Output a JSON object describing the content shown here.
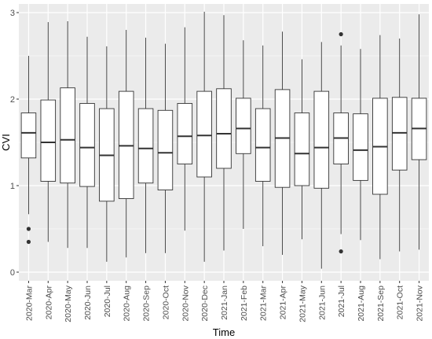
{
  "chart_data": {
    "type": "boxplot",
    "xlabel": "Time",
    "ylabel": "CVI",
    "ylim": [
      -0.1,
      3.1
    ],
    "yticks": [
      0,
      1,
      2,
      3
    ],
    "grid": true,
    "background": "#ebebeb",
    "gridline_color": "#ffffff",
    "box_fill": "#ffffff",
    "line_color": "#333333",
    "categories": [
      "2020-Mar",
      "2020-Apr",
      "2020-May",
      "2020-Jun",
      "2020-Jul",
      "2020-Aug",
      "2020-Sep",
      "2020-Oct",
      "2020-Nov",
      "2020-Dec",
      "2021-Jan",
      "2021-Feb",
      "2021-Mar",
      "2021-Apr",
      "2021-May",
      "2021-Jun",
      "2021-Jul",
      "2021-Aug",
      "2021-Sep",
      "2021-Oct",
      "2021-Nov"
    ],
    "boxes": [
      {
        "min": 0.67,
        "q1": 1.32,
        "median": 1.61,
        "q3": 1.84,
        "max": 2.5,
        "outliers": [
          0.5,
          0.35
        ]
      },
      {
        "min": 0.35,
        "q1": 1.05,
        "median": 1.5,
        "q3": 1.99,
        "max": 2.89,
        "outliers": []
      },
      {
        "min": 0.28,
        "q1": 1.03,
        "median": 1.53,
        "q3": 2.13,
        "max": 2.9,
        "outliers": []
      },
      {
        "min": 0.28,
        "q1": 0.99,
        "median": 1.44,
        "q3": 1.95,
        "max": 2.72,
        "outliers": []
      },
      {
        "min": 0.12,
        "q1": 0.82,
        "median": 1.35,
        "q3": 1.89,
        "max": 2.61,
        "outliers": []
      },
      {
        "min": 0.17,
        "q1": 0.85,
        "median": 1.46,
        "q3": 2.09,
        "max": 2.8,
        "outliers": []
      },
      {
        "min": 0.22,
        "q1": 1.03,
        "median": 1.43,
        "q3": 1.89,
        "max": 2.71,
        "outliers": []
      },
      {
        "min": 0.22,
        "q1": 0.95,
        "median": 1.38,
        "q3": 1.87,
        "max": 2.64,
        "outliers": []
      },
      {
        "min": 0.48,
        "q1": 1.25,
        "median": 1.57,
        "q3": 1.95,
        "max": 2.83,
        "outliers": []
      },
      {
        "min": 0.12,
        "q1": 1.1,
        "median": 1.58,
        "q3": 2.09,
        "max": 3.01,
        "outliers": []
      },
      {
        "min": 0.25,
        "q1": 1.2,
        "median": 1.6,
        "q3": 2.12,
        "max": 2.97,
        "outliers": []
      },
      {
        "min": 0.5,
        "q1": 1.37,
        "median": 1.66,
        "q3": 2.01,
        "max": 2.68,
        "outliers": []
      },
      {
        "min": 0.3,
        "q1": 1.05,
        "median": 1.44,
        "q3": 1.89,
        "max": 2.62,
        "outliers": []
      },
      {
        "min": 0.2,
        "q1": 0.98,
        "median": 1.55,
        "q3": 2.11,
        "max": 2.78,
        "outliers": []
      },
      {
        "min": 0.38,
        "q1": 1.0,
        "median": 1.37,
        "q3": 1.84,
        "max": 2.46,
        "outliers": []
      },
      {
        "min": 0.04,
        "q1": 0.97,
        "median": 1.44,
        "q3": 2.09,
        "max": 2.66,
        "outliers": []
      },
      {
        "min": 0.44,
        "q1": 1.25,
        "median": 1.55,
        "q3": 1.84,
        "max": 2.62,
        "outliers": [
          2.75,
          0.24
        ]
      },
      {
        "min": 0.37,
        "q1": 1.06,
        "median": 1.41,
        "q3": 1.83,
        "max": 2.58,
        "outliers": []
      },
      {
        "min": 0.15,
        "q1": 0.9,
        "median": 1.45,
        "q3": 2.01,
        "max": 2.74,
        "outliers": []
      },
      {
        "min": 0.24,
        "q1": 1.18,
        "median": 1.61,
        "q3": 2.02,
        "max": 2.7,
        "outliers": []
      },
      {
        "min": 0.26,
        "q1": 1.3,
        "median": 1.66,
        "q3": 2.01,
        "max": 2.98,
        "outliers": []
      }
    ]
  }
}
